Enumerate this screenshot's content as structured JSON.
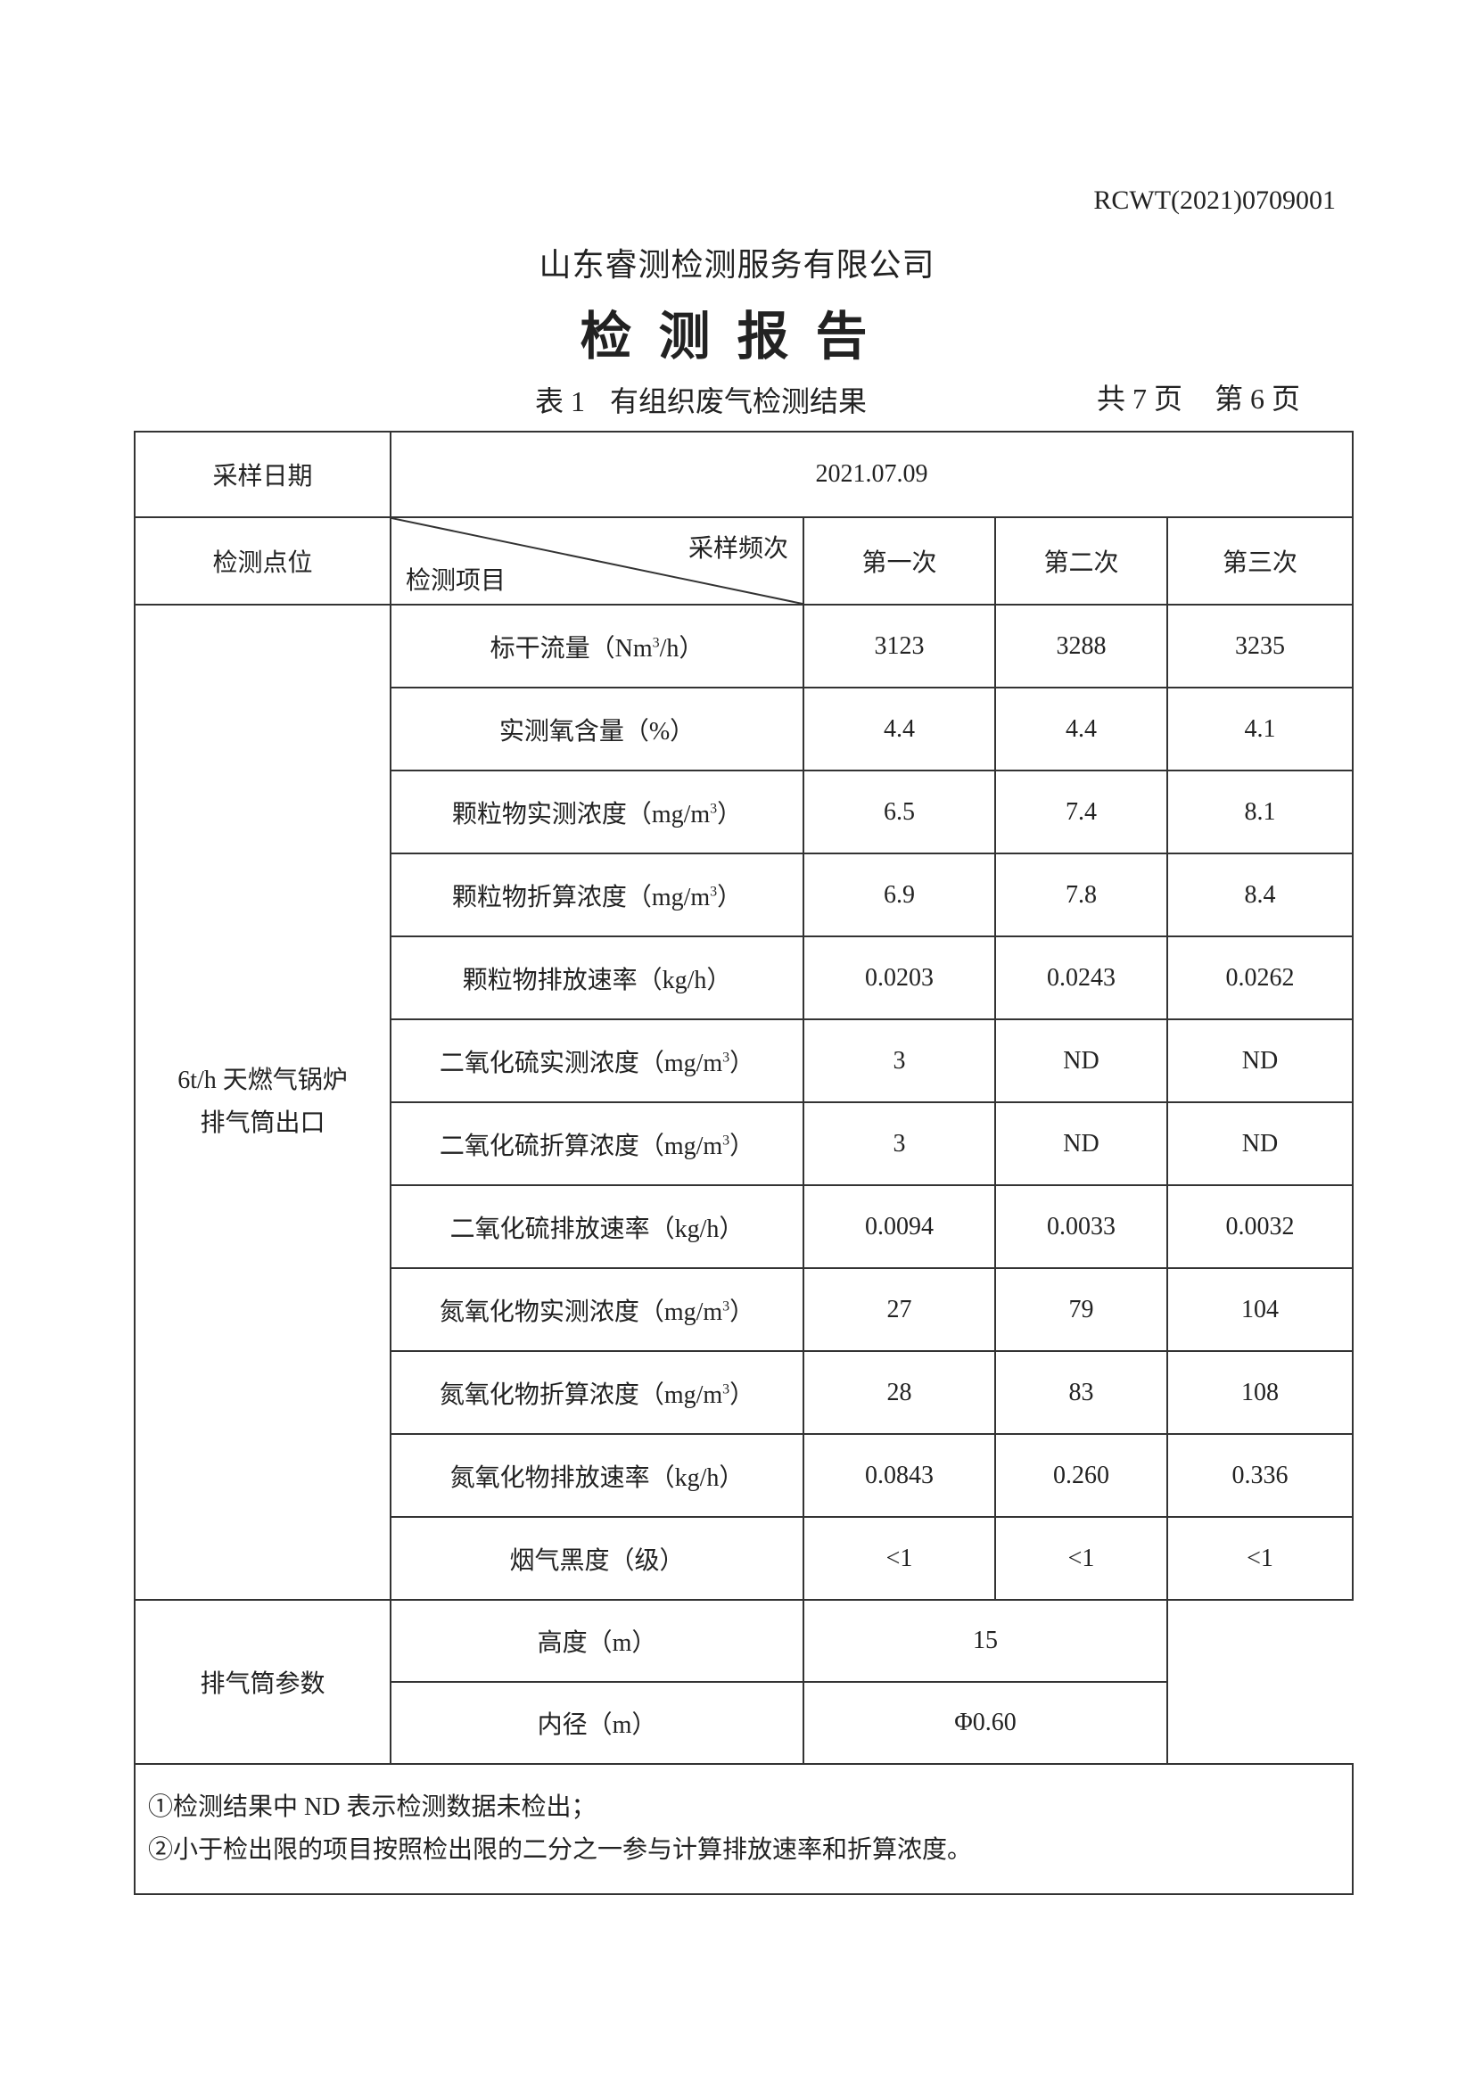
{
  "doc_number": "RCWT(2021)0709001",
  "company": "山东睿测检测服务有限公司",
  "title": "检测报告",
  "table_caption": {
    "no": "表 1",
    "name": "有组织废气检测结果"
  },
  "pages": {
    "total": "共 7 页",
    "current": "第 6 页"
  },
  "table": {
    "sampling_date_label": "采样日期",
    "sampling_date": "2021.07.09",
    "point_label": "检测点位",
    "freq_label": "采样频次",
    "item_label": "检测项目",
    "freq_headers": [
      "第一次",
      "第二次",
      "第三次"
    ],
    "point": [
      "6t/h 天燃气锅炉",
      "排气筒出口"
    ],
    "rows": [
      {
        "item": "标干流量（Nm",
        "sup": "3",
        "tail": "/h）",
        "values": [
          "3123",
          "3288",
          "3235"
        ]
      },
      {
        "item": "实测氧含量（%）",
        "sup": "",
        "tail": "",
        "values": [
          "4.4",
          "4.4",
          "4.1"
        ]
      },
      {
        "item": "颗粒物实测浓度（mg/m",
        "sup": "3",
        "tail": "）",
        "values": [
          "6.5",
          "7.4",
          "8.1"
        ]
      },
      {
        "item": "颗粒物折算浓度（mg/m",
        "sup": "3",
        "tail": "）",
        "values": [
          "6.9",
          "7.8",
          "8.4"
        ]
      },
      {
        "item": "颗粒物排放速率（kg/h）",
        "sup": "",
        "tail": "",
        "values": [
          "0.0203",
          "0.0243",
          "0.0262"
        ]
      },
      {
        "item": "二氧化硫实测浓度（mg/m",
        "sup": "3",
        "tail": "）",
        "values": [
          "3",
          "ND",
          "ND"
        ]
      },
      {
        "item": "二氧化硫折算浓度（mg/m",
        "sup": "3",
        "tail": "）",
        "values": [
          "3",
          "ND",
          "ND"
        ]
      },
      {
        "item": "二氧化硫排放速率（kg/h）",
        "sup": "",
        "tail": "",
        "values": [
          "0.0094",
          "0.0033",
          "0.0032"
        ]
      },
      {
        "item": "氮氧化物实测浓度（mg/m",
        "sup": "3",
        "tail": "）",
        "values": [
          "27",
          "79",
          "104"
        ]
      },
      {
        "item": "氮氧化物折算浓度（mg/m",
        "sup": "3",
        "tail": "）",
        "values": [
          "28",
          "83",
          "108"
        ]
      },
      {
        "item": "氮氧化物排放速率（kg/h）",
        "sup": "",
        "tail": "",
        "values": [
          "0.0843",
          "0.260",
          "0.336"
        ]
      },
      {
        "item": "烟气黑度（级）",
        "sup": "",
        "tail": "",
        "values": [
          "<1",
          "<1",
          "<1"
        ]
      }
    ],
    "stack": {
      "label": "排气筒参数",
      "height_label": "高度（m）",
      "height": "15",
      "diameter_label": "内径（m）",
      "diameter": "Φ0.60"
    },
    "notes": [
      "①检测结果中 ND 表示检测数据未检出；",
      "②小于检出限的项目按照检出限的二分之一参与计算排放速率和折算浓度。"
    ]
  }
}
